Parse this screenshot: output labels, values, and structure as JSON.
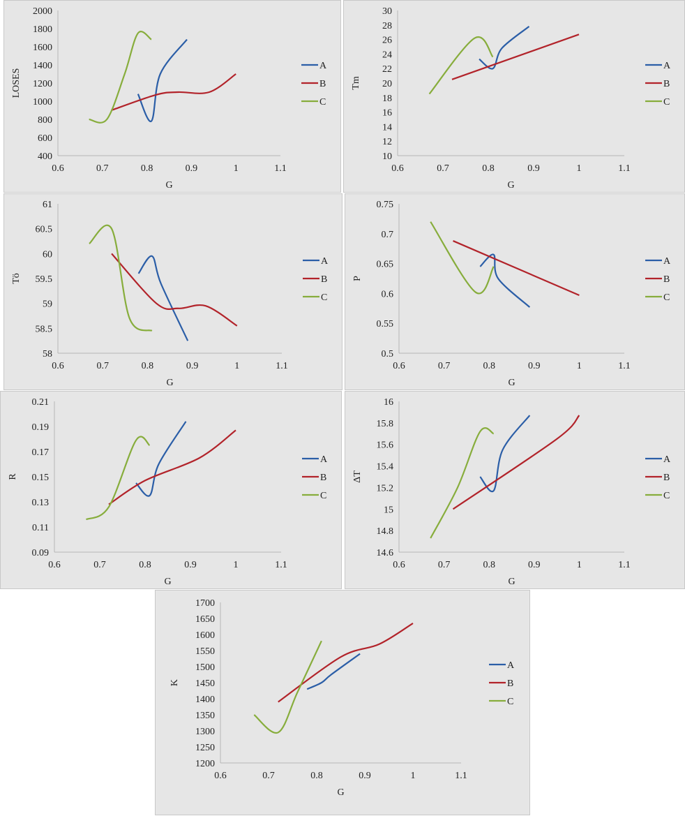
{
  "colors": {
    "A": "#2b5ea7",
    "B": "#b2232a",
    "C": "#87ad3c",
    "background": "#e6e6e6"
  },
  "chart_data": [
    {
      "type": "line",
      "xlabel": "G",
      "ylabel": "LOSES",
      "xlim": [
        0.6,
        1.1
      ],
      "ylim": [
        400,
        2000
      ],
      "xticks": [
        "0.6",
        "0.7",
        "0.8",
        "0.9",
        "1",
        "1.1"
      ],
      "yticks": [
        "400",
        "600",
        "800",
        "1000",
        "1200",
        "1400",
        "1600",
        "1800",
        "2000"
      ],
      "legend": "right",
      "grid": false,
      "series": [
        {
          "name": "A",
          "x": [
            0.78,
            0.81,
            0.83,
            0.89
          ],
          "y": [
            1080,
            780,
            1300,
            1680
          ]
        },
        {
          "name": "B",
          "x": [
            0.72,
            0.82,
            0.87,
            0.94,
            1.0
          ],
          "y": [
            900,
            1070,
            1100,
            1100,
            1300
          ]
        },
        {
          "name": "C",
          "x": [
            0.67,
            0.71,
            0.75,
            0.78,
            0.81
          ],
          "y": [
            800,
            800,
            1300,
            1750,
            1680
          ]
        }
      ]
    },
    {
      "type": "line",
      "xlabel": "G",
      "ylabel": "Tm",
      "xlim": [
        0.6,
        1.1
      ],
      "ylim": [
        10,
        30
      ],
      "xticks": [
        "0.6",
        "0.7",
        "0.8",
        "0.9",
        "1",
        "1.1"
      ],
      "yticks": [
        "10",
        "12",
        "14",
        "16",
        "18",
        "20",
        "22",
        "24",
        "26",
        "28",
        "30"
      ],
      "legend": "right",
      "grid": false,
      "series": [
        {
          "name": "A",
          "x": [
            0.78,
            0.81,
            0.83,
            0.89
          ],
          "y": [
            23.3,
            22.0,
            24.8,
            27.8
          ]
        },
        {
          "name": "B",
          "x": [
            0.72,
            1.0
          ],
          "y": [
            20.5,
            26.7
          ]
        },
        {
          "name": "C",
          "x": [
            0.67,
            0.77,
            0.81
          ],
          "y": [
            18.5,
            26.2,
            23.6
          ]
        }
      ]
    },
    {
      "type": "line",
      "xlabel": "G",
      "ylabel": "Tö",
      "xlim": [
        0.6,
        1.1
      ],
      "ylim": [
        58,
        61
      ],
      "xticks": [
        "0.6",
        "0.7",
        "0.8",
        "0.9",
        "1",
        "1.1"
      ],
      "yticks": [
        "58",
        "58.5",
        "59",
        "59.5",
        "60",
        "60.5",
        "61"
      ],
      "legend": "right",
      "grid": false,
      "series": [
        {
          "name": "A",
          "x": [
            0.78,
            0.81,
            0.83,
            0.89
          ],
          "y": [
            59.6,
            59.95,
            59.4,
            58.25
          ]
        },
        {
          "name": "B",
          "x": [
            0.72,
            0.82,
            0.87,
            0.93,
            1.0
          ],
          "y": [
            60.0,
            59.0,
            58.9,
            58.95,
            58.55
          ]
        },
        {
          "name": "C",
          "x": [
            0.67,
            0.72,
            0.76,
            0.81
          ],
          "y": [
            60.2,
            60.5,
            58.7,
            58.45
          ]
        }
      ]
    },
    {
      "type": "line",
      "xlabel": "G",
      "ylabel": "P",
      "xlim": [
        0.6,
        1.1
      ],
      "ylim": [
        0.5,
        0.75
      ],
      "xticks": [
        "0.6",
        "0.7",
        "0.8",
        "0.9",
        "1",
        "1.1"
      ],
      "yticks": [
        "0.5",
        "0.55",
        "0.6",
        "0.65",
        "0.7",
        "0.75"
      ],
      "legend": "right",
      "grid": false,
      "series": [
        {
          "name": "A",
          "x": [
            0.78,
            0.81,
            0.82,
            0.89
          ],
          "y": [
            0.645,
            0.665,
            0.625,
            0.577
          ]
        },
        {
          "name": "B",
          "x": [
            0.72,
            1.0
          ],
          "y": [
            0.688,
            0.597
          ]
        },
        {
          "name": "C",
          "x": [
            0.67,
            0.77,
            0.81
          ],
          "y": [
            0.72,
            0.602,
            0.645
          ]
        }
      ]
    },
    {
      "type": "line",
      "xlabel": "G",
      "ylabel": "R",
      "xlim": [
        0.6,
        1.1
      ],
      "ylim": [
        0.09,
        0.21
      ],
      "xticks": [
        "0.6",
        "0.7",
        "0.8",
        "0.9",
        "1",
        "1.1"
      ],
      "yticks": [
        "0.09",
        "0.11",
        "0.13",
        "0.15",
        "0.17",
        "0.19",
        "0.21"
      ],
      "legend": "right",
      "grid": false,
      "series": [
        {
          "name": "A",
          "x": [
            0.78,
            0.81,
            0.83,
            0.89
          ],
          "y": [
            0.145,
            0.135,
            0.16,
            0.194
          ]
        },
        {
          "name": "B",
          "x": [
            0.72,
            0.8,
            0.92,
            1.0
          ],
          "y": [
            0.128,
            0.147,
            0.165,
            0.187
          ]
        },
        {
          "name": "C",
          "x": [
            0.67,
            0.72,
            0.78,
            0.81
          ],
          "y": [
            0.116,
            0.126,
            0.179,
            0.175
          ]
        }
      ]
    },
    {
      "type": "line",
      "xlabel": "G",
      "ylabel": "ΔT",
      "xlim": [
        0.6,
        1.1
      ],
      "ylim": [
        14.6,
        16
      ],
      "xticks": [
        "0.6",
        "0.7",
        "0.8",
        "0.9",
        "1",
        "1.1"
      ],
      "yticks": [
        "14.6",
        "14.8",
        "15",
        "15.2",
        "15.4",
        "15.6",
        "15.8",
        "16"
      ],
      "legend": "right",
      "grid": false,
      "series": [
        {
          "name": "A",
          "x": [
            0.78,
            0.81,
            0.83,
            0.89
          ],
          "y": [
            15.3,
            15.17,
            15.55,
            15.87
          ]
        },
        {
          "name": "B",
          "x": [
            0.72,
            0.95,
            1.0
          ],
          "y": [
            15.0,
            15.65,
            15.87
          ]
        },
        {
          "name": "C",
          "x": [
            0.67,
            0.73,
            0.78,
            0.81
          ],
          "y": [
            14.73,
            15.2,
            15.72,
            15.7
          ]
        }
      ]
    },
    {
      "type": "line",
      "xlabel": "G",
      "ylabel": "K",
      "xlim": [
        0.6,
        1.1
      ],
      "ylim": [
        1200,
        1700
      ],
      "xticks": [
        "0.6",
        "0.7",
        "0.8",
        "0.9",
        "1",
        "1.1"
      ],
      "yticks": [
        "1200",
        "1250",
        "1300",
        "1350",
        "1400",
        "1450",
        "1500",
        "1550",
        "1600",
        "1650",
        "1700"
      ],
      "legend": "right",
      "grid": false,
      "series": [
        {
          "name": "A",
          "x": [
            0.78,
            0.81,
            0.83,
            0.89
          ],
          "y": [
            1430,
            1450,
            1475,
            1540
          ]
        },
        {
          "name": "B",
          "x": [
            0.72,
            0.85,
            0.93,
            1.0
          ],
          "y": [
            1390,
            1530,
            1570,
            1635
          ]
        },
        {
          "name": "C",
          "x": [
            0.67,
            0.72,
            0.76,
            0.81
          ],
          "y": [
            1350,
            1295,
            1420,
            1580
          ]
        }
      ]
    }
  ]
}
